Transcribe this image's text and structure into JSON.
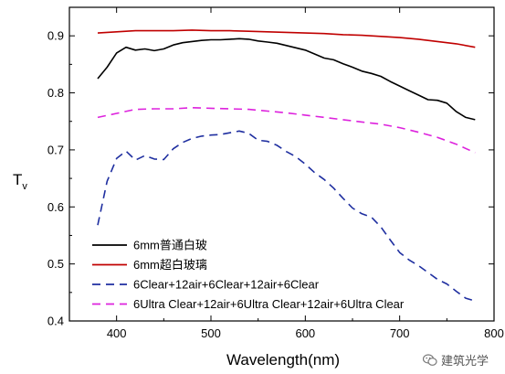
{
  "chart_data": {
    "type": "line",
    "xlabel": "Wavelength(nm)",
    "ylabel": "T",
    "ylabel_sub": "v",
    "xlim": [
      350,
      800
    ],
    "ylim": [
      0.4,
      0.95
    ],
    "xticks": [
      400,
      500,
      600,
      700,
      800
    ],
    "yticks": [
      0.4,
      0.5,
      0.6,
      0.7,
      0.8,
      0.9
    ],
    "grid": false,
    "legend_position": "lower-left",
    "series": [
      {
        "name": "6mm普通白玻",
        "color": "#000000",
        "dash": "solid",
        "x": [
          380,
          390,
          400,
          410,
          420,
          430,
          440,
          450,
          460,
          470,
          480,
          490,
          500,
          510,
          520,
          530,
          540,
          550,
          560,
          570,
          580,
          590,
          600,
          610,
          620,
          630,
          640,
          650,
          660,
          670,
          680,
          690,
          700,
          710,
          720,
          730,
          740,
          750,
          760,
          770,
          780
        ],
        "y": [
          0.825,
          0.845,
          0.87,
          0.88,
          0.875,
          0.877,
          0.874,
          0.877,
          0.884,
          0.888,
          0.89,
          0.892,
          0.893,
          0.893,
          0.894,
          0.895,
          0.894,
          0.891,
          0.889,
          0.887,
          0.883,
          0.879,
          0.875,
          0.868,
          0.861,
          0.858,
          0.851,
          0.845,
          0.838,
          0.834,
          0.829,
          0.82,
          0.812,
          0.804,
          0.796,
          0.788,
          0.787,
          0.782,
          0.767,
          0.757,
          0.753
        ]
      },
      {
        "name": "6mm超白玻璃",
        "color": "#c00000",
        "dash": "solid",
        "x": [
          380,
          400,
          420,
          440,
          460,
          480,
          500,
          520,
          540,
          560,
          580,
          600,
          620,
          640,
          660,
          680,
          700,
          720,
          740,
          760,
          780
        ],
        "y": [
          0.905,
          0.907,
          0.909,
          0.909,
          0.909,
          0.91,
          0.909,
          0.909,
          0.908,
          0.907,
          0.906,
          0.905,
          0.904,
          0.902,
          0.901,
          0.899,
          0.897,
          0.894,
          0.89,
          0.886,
          0.88
        ]
      },
      {
        "name": "6Clear+12air+6Clear+12air+6Clear",
        "color": "#1f2fa0",
        "dash": "9,6",
        "x": [
          380,
          390,
          400,
          410,
          420,
          430,
          440,
          450,
          460,
          470,
          480,
          490,
          500,
          510,
          520,
          530,
          540,
          550,
          560,
          570,
          580,
          590,
          600,
          610,
          620,
          630,
          640,
          650,
          660,
          670,
          680,
          690,
          700,
          710,
          720,
          730,
          740,
          750,
          760,
          770,
          780
        ],
        "y": [
          0.568,
          0.645,
          0.685,
          0.698,
          0.682,
          0.69,
          0.684,
          0.683,
          0.702,
          0.713,
          0.72,
          0.724,
          0.726,
          0.727,
          0.73,
          0.733,
          0.729,
          0.717,
          0.715,
          0.708,
          0.697,
          0.688,
          0.675,
          0.66,
          0.648,
          0.633,
          0.615,
          0.598,
          0.588,
          0.582,
          0.565,
          0.542,
          0.52,
          0.507,
          0.497,
          0.485,
          0.473,
          0.465,
          0.452,
          0.44,
          0.435
        ]
      },
      {
        "name": "6Ultra Clear+12air+6Ultra Clear+12air+6Ultra Clear",
        "color": "#dd22dd",
        "dash": "9,6",
        "x": [
          380,
          400,
          420,
          440,
          460,
          480,
          500,
          520,
          540,
          560,
          580,
          600,
          620,
          640,
          660,
          680,
          700,
          720,
          740,
          760,
          780
        ],
        "y": [
          0.757,
          0.764,
          0.771,
          0.772,
          0.772,
          0.774,
          0.773,
          0.772,
          0.771,
          0.768,
          0.765,
          0.761,
          0.757,
          0.753,
          0.749,
          0.745,
          0.739,
          0.731,
          0.722,
          0.71,
          0.695
        ]
      }
    ]
  },
  "watermark": {
    "text": "建筑光学",
    "icon": "wechat-icon"
  }
}
